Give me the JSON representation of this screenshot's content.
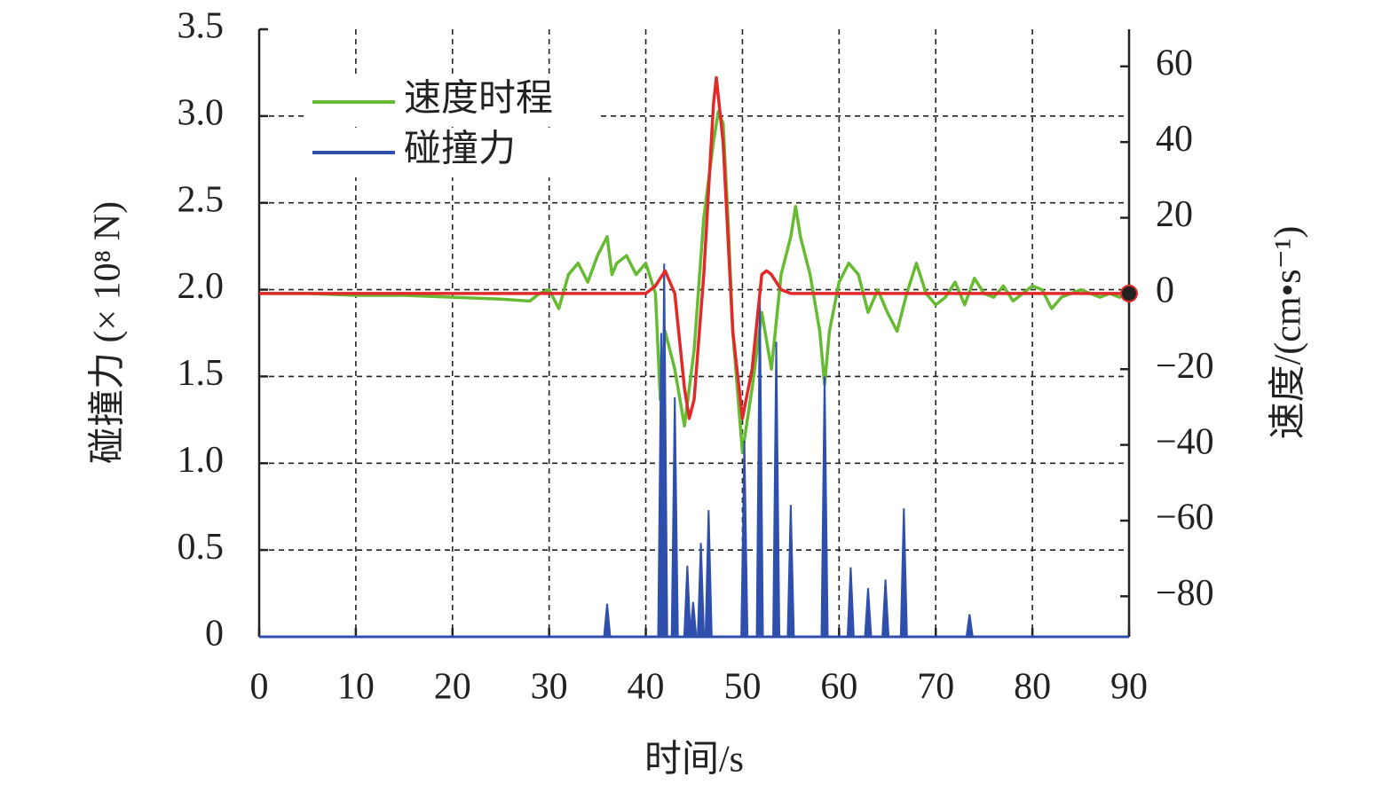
{
  "chart_data": {
    "type": "line",
    "x_label": "时间/s",
    "y_label": "碰撞力 (× 10⁸ N)",
    "y2_label": "速度/(cm•s⁻¹)",
    "xlim": [
      0,
      90
    ],
    "xticks": [
      0,
      10,
      20,
      30,
      40,
      50,
      60,
      70,
      80,
      90
    ],
    "ylim": [
      0,
      3.5
    ],
    "yticks": [
      0,
      0.5,
      {
        "value": 1,
        "label": "1.0"
      },
      1.5,
      {
        "value": 2,
        "label": "2.0"
      },
      2.5,
      {
        "value": 3,
        "label": "3.0"
      },
      3.5
    ],
    "y2lim": [
      -90.7,
      69.8
    ],
    "y2ticks": [
      {
        "value": -80,
        "label": "−80"
      },
      {
        "value": -60,
        "label": "−60"
      },
      {
        "value": -40,
        "label": "−40"
      },
      {
        "value": -20,
        "label": "−20"
      },
      0,
      20,
      40,
      60
    ],
    "grid": true,
    "legend": "upper-left",
    "series": [
      {
        "name": "速度时程",
        "color": "#66bb33",
        "axis": "y2",
        "x": [
          0,
          5,
          10,
          15,
          20,
          25,
          28,
          29,
          30,
          31,
          32,
          33,
          34,
          35,
          36,
          36.5,
          37,
          38,
          39,
          40,
          41,
          41.5,
          42,
          43,
          44,
          45,
          46,
          47,
          47.5,
          48,
          48.5,
          49,
          50,
          51,
          52,
          53,
          54,
          55,
          55.5,
          56,
          57,
          58,
          58.5,
          59,
          60,
          61,
          62,
          63,
          64,
          65,
          66,
          67,
          68,
          69,
          70,
          71,
          72,
          73,
          74,
          75,
          76,
          77,
          78,
          79,
          80,
          81,
          82,
          83,
          84,
          85,
          86,
          87,
          88,
          89,
          90
        ],
        "values": [
          0,
          0,
          -0.5,
          -0.5,
          -1,
          -1.5,
          -2,
          0,
          1,
          -4,
          5,
          8,
          3,
          10,
          15,
          5,
          8,
          10,
          5,
          8,
          0,
          -28,
          -10,
          -20,
          -35,
          -15,
          20,
          40,
          48,
          45,
          20,
          -10,
          -42,
          -25,
          -5,
          -20,
          5,
          15,
          23,
          15,
          5,
          -10,
          -24,
          -10,
          3,
          8,
          5,
          -5,
          1,
          -5,
          -10,
          0,
          8,
          0,
          -3,
          -1,
          3,
          -3,
          4,
          0,
          -1,
          2,
          -2,
          0,
          2,
          1,
          -4,
          -1,
          0,
          1,
          0,
          -1,
          0,
          -1,
          0
        ]
      },
      {
        "name": "碰撞力",
        "color": "#2f4fad",
        "type": "spike",
        "x": [
          36,
          41.6,
          41.9,
          43,
          44.3,
          44.9,
          45.7,
          46.5,
          50.2,
          51.8,
          53.5,
          55,
          58.5,
          61.2,
          63,
          64.8,
          66.7,
          73.5
        ],
        "values": [
          0.19,
          1.75,
          2.15,
          1.38,
          0.41,
          0.2,
          0.54,
          0.73,
          1.13,
          1.95,
          1.7,
          0.76,
          1.5,
          0.4,
          0.28,
          0.33,
          0.74,
          0.13
        ]
      },
      {
        "color": "#e02a2a",
        "axis": "y2",
        "x": [
          0,
          10,
          20,
          30,
          39,
          40,
          41,
          42,
          43,
          44,
          44.5,
          45,
          46,
          47,
          47.3,
          48,
          49,
          50,
          51,
          52,
          52.5,
          53,
          54,
          55,
          60,
          70,
          80,
          90
        ],
        "values": [
          0,
          0,
          0,
          0,
          0,
          0,
          2,
          6,
          0,
          -25,
          -33,
          -28,
          5,
          50,
          57,
          40,
          -10,
          -33,
          -20,
          5,
          6,
          5,
          1,
          0,
          0,
          0,
          0,
          0
        ]
      }
    ]
  }
}
